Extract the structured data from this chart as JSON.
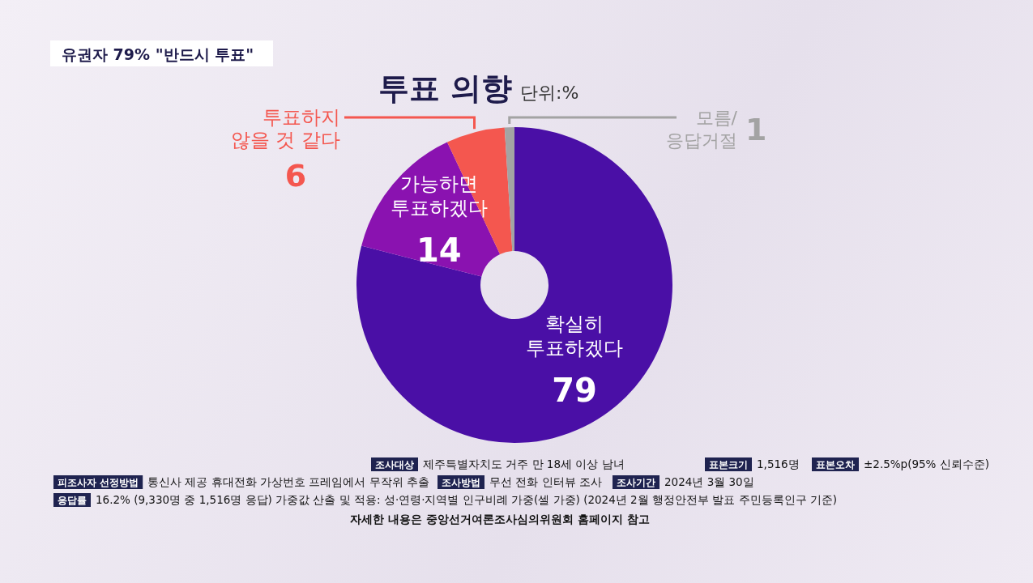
{
  "chart_data": {
    "type": "donut",
    "title": "투표 의향",
    "subtitle": "단위:%",
    "categories": [
      "확실히 투표하겠다",
      "가능하면 투표하겠다",
      "투표하지 않을 것 같다",
      "모름/ 응답거절"
    ],
    "values": [
      79,
      14,
      6,
      1
    ],
    "colors": [
      "#4a0fa6",
      "#8a12b0",
      "#f4574f",
      "#a3a3a3"
    ],
    "data_labels": true,
    "annotations": [
      "유권자 79% \"반드시 투표\"",
      "조사대상",
      "제주특별자치도 거주 만 18세 이상 남녀",
      "표본크기",
      "1,516명",
      "표본오차",
      "±2.5%p(95% 신뢰수준)",
      "피조사자 선정방법",
      "통신사 제공 휴대전화 가상번호 프레임에서 무작위 추출",
      "조사방법",
      "무선 전화 인터뷰 조사",
      "조사기간",
      "2024년 3월 30일",
      "응답률",
      "16.2% (9,330명 중 1,516명 응답) 가중값 산출 및 적용: 성·연령·지역별 인구비례 가중(셀 가중) (2024년 2월 행정안전부 발표 주민등록인구 기준)",
      "자세한 내용은 중앙선거여론조사심의위원회 홈페이지 참고"
    ]
  }
}
